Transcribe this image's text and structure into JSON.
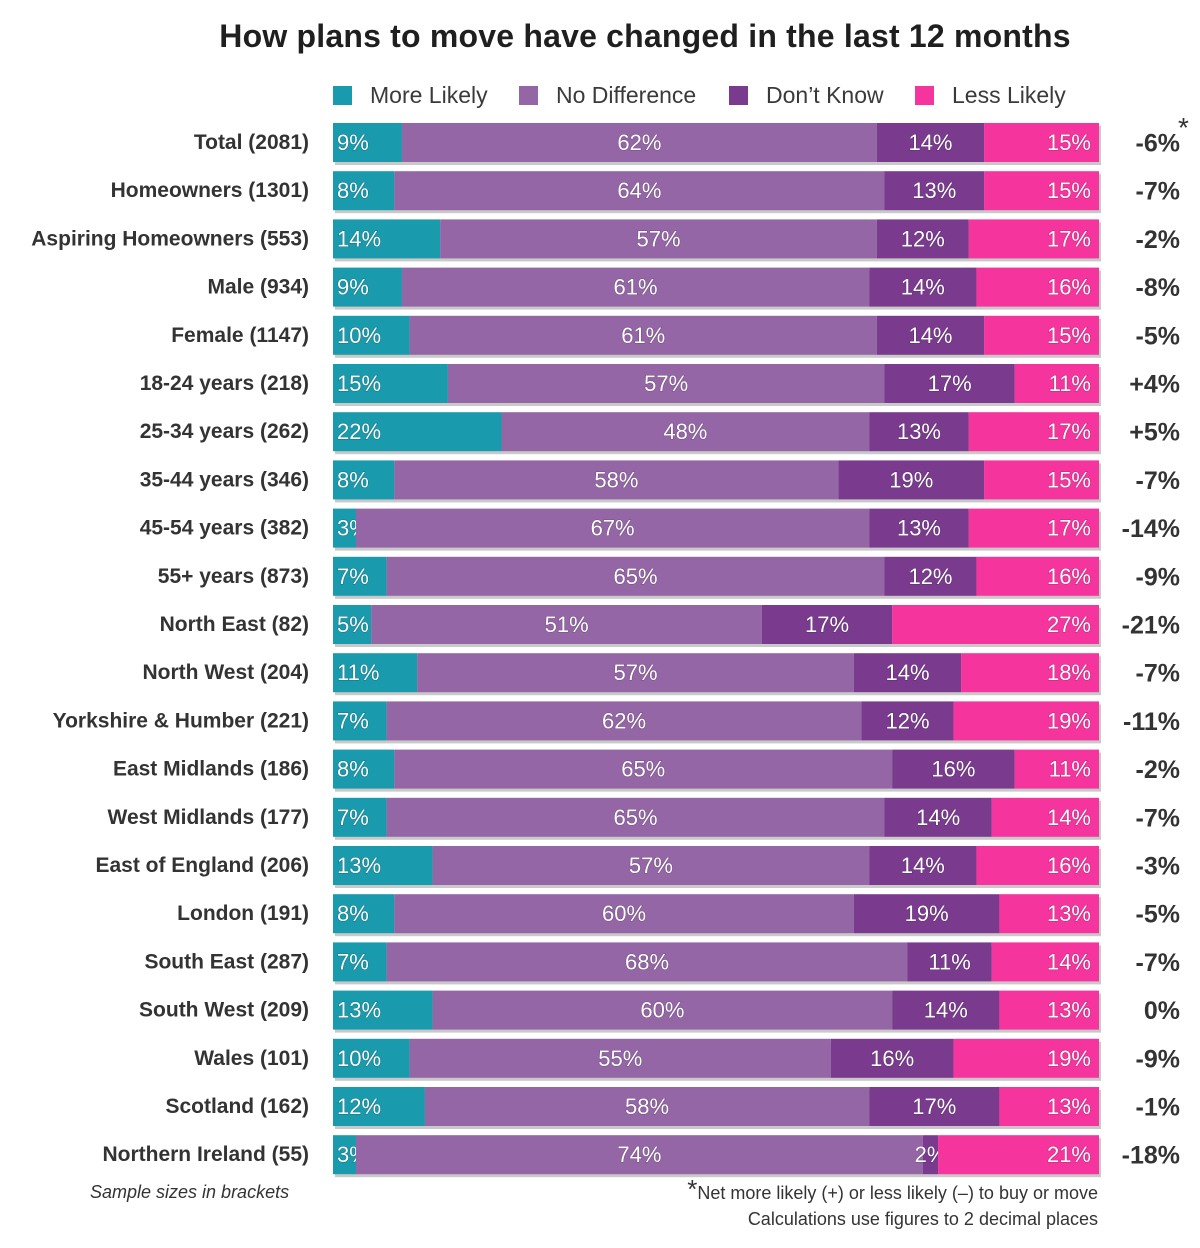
{
  "chart_data": {
    "type": "bar",
    "orientation": "horizontal",
    "stacked": true,
    "title": "How plans to move have changed in the last 12 months",
    "legend": {
      "placement": "top",
      "items": [
        "More Likely",
        "No Difference",
        "Don’t Know",
        "Less Likely"
      ]
    },
    "categories": [
      "Total (2081)",
      "Homeowners (1301)",
      "Aspiring Homeowners (553)",
      "Male (934)",
      "Female (1147)",
      "18-24 years (218)",
      "25-34 years (262)",
      "35-44 years (346)",
      "45-54 years (382)",
      "55+ years (873)",
      "North East (82)",
      "North West (204)",
      "Yorkshire & Humber (221)",
      "East Midlands (186)",
      "West Midlands (177)",
      "East of England (206)",
      "London (191)",
      "South East (287)",
      "South West (209)",
      "Wales (101)",
      "Scotland (162)",
      "Northern Ireland (55)"
    ],
    "series": [
      {
        "name": "More Likely",
        "color": "#1a9aad",
        "values": [
          9,
          8,
          14,
          9,
          10,
          15,
          22,
          8,
          3,
          7,
          5,
          11,
          7,
          8,
          7,
          13,
          8,
          7,
          13,
          10,
          12,
          3
        ]
      },
      {
        "name": "No Difference",
        "color": "#9466a6",
        "values": [
          62,
          64,
          57,
          61,
          61,
          57,
          48,
          58,
          67,
          65,
          51,
          57,
          62,
          65,
          65,
          57,
          60,
          68,
          60,
          55,
          58,
          74
        ]
      },
      {
        "name": "Don’t Know",
        "color": "#7a3b8f",
        "values": [
          14,
          13,
          12,
          14,
          14,
          17,
          13,
          19,
          13,
          12,
          17,
          14,
          12,
          16,
          14,
          14,
          19,
          11,
          14,
          16,
          17,
          2
        ]
      },
      {
        "name": "Less Likely",
        "color": "#f5349e",
        "values": [
          15,
          15,
          17,
          16,
          15,
          11,
          17,
          15,
          17,
          16,
          27,
          18,
          19,
          11,
          14,
          16,
          13,
          14,
          13,
          19,
          13,
          21
        ]
      }
    ],
    "net_values": [
      "-6%",
      "-7%",
      "-2%",
      "-8%",
      "-5%",
      "+4%",
      "+5%",
      "-7%",
      "-14%",
      "-9%",
      "-21%",
      "-7%",
      "-11%",
      "-2%",
      "-7%",
      "-3%",
      "-5%",
      "-7%",
      "0%",
      "-9%",
      "-1%",
      "-18%"
    ],
    "value_suffix": "%",
    "xlim": [
      0,
      100
    ],
    "grid": false
  },
  "footnotes": {
    "left": "Sample sizes in brackets",
    "asterisk": "*",
    "right_line1": "Net more likely (+) or less likely (–) to buy or move",
    "right_line2": "Calculations use figures to 2 decimal places"
  }
}
